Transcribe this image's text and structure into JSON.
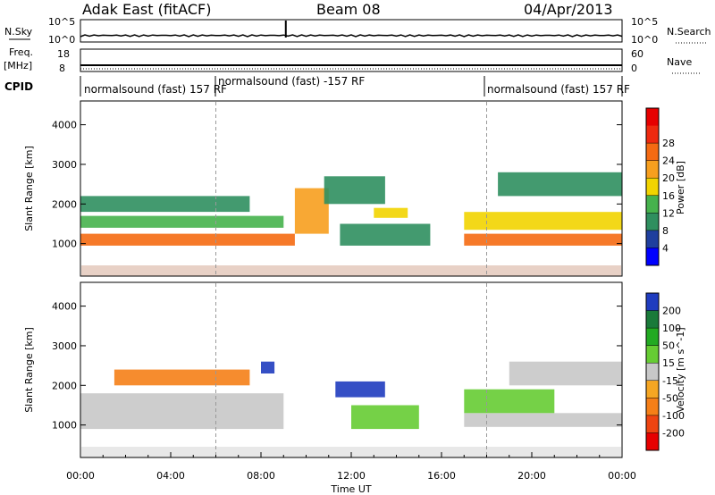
{
  "header": {
    "title": "Adak East (fitACF)",
    "beam": "Beam 08",
    "date": "04/Apr/2013"
  },
  "nsky_panel": {
    "label": "N.Sky",
    "tick_labels_left": [
      "10^5",
      "10^0"
    ],
    "right_label": "N.Search",
    "tick_labels_right": [
      "10^5",
      "10^0"
    ]
  },
  "freq_panel": {
    "label_line1": "Freq.",
    "label_line2": "[MHz]",
    "tick_labels_left": [
      "18",
      "8"
    ],
    "right_label": "Nave",
    "tick_labels_right": [
      "60",
      "0"
    ]
  },
  "cpid": {
    "label": "CPID",
    "segments": [
      {
        "name": "normalsound (fast) 157 RF",
        "start_hour": 0,
        "end_hour": 6
      },
      {
        "name": "normalsound (fast) -157 RF",
        "start_hour": 6,
        "end_hour": 18
      },
      {
        "name": "normalsound (fast) 157 RF",
        "start_hour": 18,
        "end_hour": 24
      }
    ]
  },
  "power_panel": {
    "ylabel": "Slant Range [km]",
    "yticks": [
      1000,
      2000,
      3000,
      4000
    ],
    "colorbar_label": "Power [dB]",
    "colorbar_ticks": [
      4,
      8,
      12,
      16,
      20,
      24,
      28
    ],
    "colors": [
      "#0000ff",
      "#1f3f9e",
      "#2f8f5f",
      "#46b24d",
      "#f2d400",
      "#f79f1e",
      "#f56a12",
      "#ee2a0f",
      "#e60000"
    ]
  },
  "velocity_panel": {
    "ylabel": "Slant Range [km]",
    "yticks": [
      1000,
      2000,
      3000,
      4000
    ],
    "colorbar_label": "Velocity [m s^-1]",
    "colorbar_ticks": [
      200,
      100,
      50,
      15,
      -15,
      -50,
      -100,
      -200
    ],
    "colors": [
      "#1f3cbf",
      "#1a7a3a",
      "#22aa22",
      "#66cc33",
      "#c8c8c8",
      "#f5a623",
      "#f57f17",
      "#ee4411",
      "#e60000"
    ]
  },
  "x_axis": {
    "label": "Time UT",
    "tick_labels": [
      "00:00",
      "04:00",
      "08:00",
      "12:00",
      "16:00",
      "20:00",
      "00:00"
    ]
  },
  "chart_data": {
    "type": "heatmap",
    "x_range_hours": [
      0,
      24
    ],
    "y_range_km": [
      180,
      4600
    ],
    "power_bands_db": [
      {
        "start": 0.0,
        "end": 9.5,
        "r0": 950,
        "r1": 1250,
        "v": 26
      },
      {
        "start": 9.5,
        "end": 11.0,
        "r0": 1250,
        "r1": 2400,
        "v": 20
      },
      {
        "start": 0.0,
        "end": 9.0,
        "r0": 1400,
        "r1": 1700,
        "v": 14
      },
      {
        "start": 0.0,
        "end": 7.5,
        "r0": 1800,
        "r1": 2200,
        "v": 10
      },
      {
        "start": 10.8,
        "end": 13.5,
        "r0": 2000,
        "r1": 2700,
        "v": 8
      },
      {
        "start": 11.5,
        "end": 15.5,
        "r0": 950,
        "r1": 1500,
        "v": 8
      },
      {
        "start": 13.0,
        "end": 14.5,
        "r0": 1650,
        "r1": 1900,
        "v": 18
      },
      {
        "start": 17.0,
        "end": 24.0,
        "r0": 950,
        "r1": 1250,
        "v": 26
      },
      {
        "start": 17.0,
        "end": 24.0,
        "r0": 1350,
        "r1": 1800,
        "v": 16
      },
      {
        "start": 18.5,
        "end": 24.0,
        "r0": 2200,
        "r1": 2800,
        "v": 8
      }
    ],
    "velocity_bands_ms": [
      {
        "start": 0.0,
        "end": 9.0,
        "r0": 900,
        "r1": 1800,
        "v": 0
      },
      {
        "start": 1.5,
        "end": 7.5,
        "r0": 2000,
        "r1": 2400,
        "v": -60
      },
      {
        "start": 8.0,
        "end": 8.6,
        "r0": 2300,
        "r1": 2600,
        "v": 200
      },
      {
        "start": 11.3,
        "end": 13.5,
        "r0": 1700,
        "r1": 2100,
        "v": 200
      },
      {
        "start": 12.0,
        "end": 15.0,
        "r0": 900,
        "r1": 1500,
        "v": 30
      },
      {
        "start": 17.0,
        "end": 24.0,
        "r0": 950,
        "r1": 1300,
        "v": 0
      },
      {
        "start": 17.0,
        "end": 21.0,
        "r0": 1300,
        "r1": 1900,
        "v": 30
      },
      {
        "start": 19.0,
        "end": 24.0,
        "r0": 2000,
        "r1": 2600,
        "v": 0
      }
    ],
    "nsky_max_hour": 9.1
  }
}
